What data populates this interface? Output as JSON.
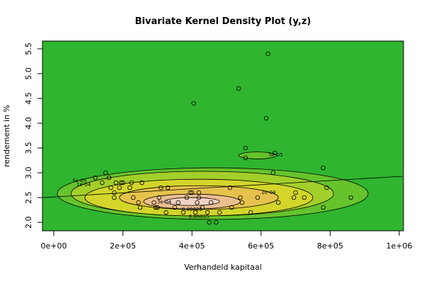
{
  "chart_data": {
    "type": "kde",
    "title": "Bivariate Kernel Density Plot (y,z)",
    "xlabel": "Verhandeld kapitaal",
    "ylabel": "rendement in %",
    "xlim": [
      -32800,
      1012300
    ],
    "ylim": [
      1.83,
      5.657
    ],
    "xticks": [
      {
        "value": 0,
        "label": "0e+00"
      },
      {
        "value": 200000,
        "label": "2e+05"
      },
      {
        "value": 400000,
        "label": "4e+05"
      },
      {
        "value": 600000,
        "label": "6e+05"
      },
      {
        "value": 800000,
        "label": "8e+05"
      },
      {
        "value": 1000000,
        "label": "1e+06"
      }
    ],
    "yticks": [
      {
        "value": 2,
        "label": "2.0"
      },
      2.5,
      {
        "value": 3,
        "label": "3.0"
      },
      3.5,
      {
        "value": 4,
        "label": "4.0"
      },
      4.5,
      {
        "value": 5,
        "label": "5.0"
      },
      5.5
    ],
    "background": "#2fb52f",
    "contours": [
      {
        "level": {
          "value": 5e-05,
          "label": "5e-05"
        },
        "center": [
          460000,
          2.58
        ],
        "rx": 450000,
        "ry": 0.52,
        "color": "#66c32c"
      },
      {
        "level": {
          "value": 5e-05,
          "label": "5e-05"
        },
        "center": [
          590000,
          3.35
        ],
        "rx": 55000,
        "ry": 0.07,
        "color": "#66c32c"
      },
      {
        "level": {
          "value": 0.0001,
          "label": "1e-04"
        },
        "center": [
          430000,
          2.58
        ],
        "rx": 380000,
        "ry": 0.45,
        "color": "#a3cf2a"
      },
      {
        "level": {
          "value": 0.00015,
          "label": "0.00015"
        },
        "center": [
          420000,
          2.5
        ],
        "rx": 330000,
        "ry": 0.37,
        "color": "#d3d52a"
      },
      {
        "level": {
          "value": 0.0002,
          "label": "2e-04"
        },
        "center": [
          420000,
          2.5
        ],
        "rx": 230000,
        "ry": 0.24,
        "color": "#e6c24d"
      },
      {
        "level": {
          "value": 0.00025,
          "label": "0.00025"
        },
        "center": [
          400000,
          2.42
        ],
        "rx": 140000,
        "ry": 0.15,
        "color": "#ebbf90"
      },
      {
        "level": {
          "value": 0.0003,
          "label": "3e-04"
        },
        "center": [
          400000,
          2.42
        ],
        "rx": 80000,
        "ry": 0.08,
        "color": "#f2d2c4"
      }
    ],
    "x": [
      120000,
      150000,
      140000,
      160000,
      165000,
      175000,
      180000,
      190000,
      195000,
      200000,
      175000,
      220000,
      225000,
      230000,
      245000,
      250000,
      255000,
      290000,
      295000,
      300000,
      305000,
      310000,
      325000,
      330000,
      350000,
      360000,
      375000,
      385000,
      395000,
      400000,
      405000,
      410000,
      415000,
      420000,
      420000,
      430000,
      445000,
      450000,
      455000,
      470000,
      480000,
      510000,
      515000,
      540000,
      535000,
      545000,
      555000,
      555000,
      570000,
      590000,
      615000,
      620000,
      635000,
      640000,
      650000,
      695000,
      700000,
      725000,
      780000,
      780000,
      790000,
      860000
    ],
    "y": [
      2.9,
      3.0,
      2.8,
      2.9,
      2.7,
      2.6,
      2.8,
      2.7,
      2.8,
      2.8,
      2.5,
      2.7,
      2.8,
      2.5,
      2.4,
      2.3,
      2.8,
      2.4,
      2.3,
      2.3,
      2.5,
      2.7,
      2.2,
      2.7,
      2.3,
      2.4,
      2.2,
      2.5,
      2.6,
      2.6,
      4.4,
      2.2,
      2.4,
      2.5,
      2.6,
      2.3,
      2.2,
      2.0,
      2.4,
      2.0,
      2.2,
      2.7,
      2.3,
      2.5,
      4.7,
      2.4,
      3.5,
      3.3,
      2.2,
      2.5,
      4.1,
      5.4,
      3.0,
      3.4,
      2.4,
      2.5,
      2.6,
      2.5,
      3.1,
      2.3,
      2.7,
      2.5
    ],
    "line": {
      "x": [
        -30000,
        1010000
      ],
      "y": [
        2.5,
        2.93
      ]
    }
  }
}
